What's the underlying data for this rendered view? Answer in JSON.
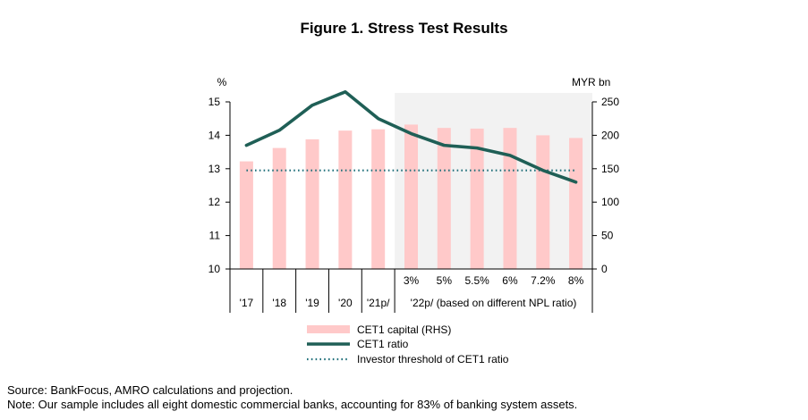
{
  "chart_data": {
    "type": "bar+line",
    "title": "Figure 1. Stress Test Results",
    "y_left_label": "%",
    "y_right_label": "MYR bn",
    "y_left_range": [
      10,
      15
    ],
    "y_left_ticks": [
      "10",
      "11",
      "12",
      "13",
      "14",
      "15"
    ],
    "y_right_range": [
      0,
      250
    ],
    "y_right_ticks": [
      "0",
      "50",
      "100",
      "150",
      "200",
      "250"
    ],
    "categories": [
      "'17",
      "'18",
      "'19",
      "'20",
      "'21p/",
      "3%",
      "5%",
      "5.5%",
      "6%",
      "7.2%",
      "8%"
    ],
    "group_label": "'22p/ (based on different NPL ratio)",
    "shaded_region": "'22p/ scenarios",
    "series": [
      {
        "name": "CET1 capital (RHS)",
        "kind": "bar",
        "axis": "right",
        "color": "#ffc9c9",
        "values": [
          161,
          181,
          194,
          207,
          209,
          216,
          211,
          210,
          211,
          200,
          196
        ]
      },
      {
        "name": "CET1 ratio",
        "kind": "line",
        "axis": "left",
        "color": "#1f5f56",
        "values": [
          13.7,
          14.15,
          14.9,
          15.3,
          14.5,
          14.05,
          13.7,
          13.62,
          13.4,
          12.95,
          12.6
        ]
      },
      {
        "name": "Investor threshold of CET1 ratio",
        "kind": "dotted-line",
        "axis": "left",
        "color": "#1f6f7a",
        "values": [
          12.95,
          12.95,
          12.95,
          12.95,
          12.95,
          12.95,
          12.95,
          12.95,
          12.95,
          12.95,
          12.95
        ]
      }
    ],
    "legend_position": "bottom"
  },
  "source_note": "Source: BankFocus, AMRO calculations and projection.",
  "sample_note": "Note: Our sample includes all eight domestic commercial banks, accounting for 83% of banking system assets."
}
